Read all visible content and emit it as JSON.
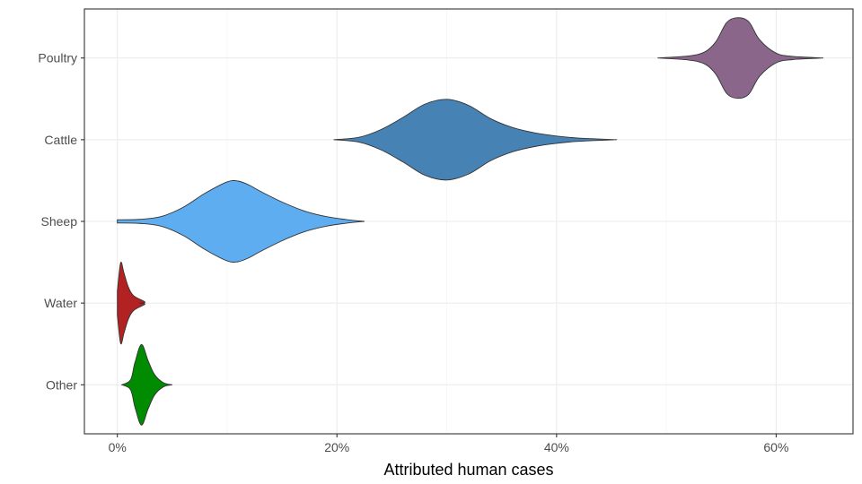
{
  "chart_data": {
    "type": "violin",
    "orientation": "horizontal",
    "title": "",
    "xlabel": "Attributed human cases",
    "ylabel": "",
    "xlim": [
      -3,
      67
    ],
    "x_ticks": [
      0,
      20,
      40,
      60
    ],
    "x_tick_labels": [
      "0%",
      "20%",
      "40%",
      "60%"
    ],
    "grid": true,
    "legend": "none",
    "categories": [
      "Poultry",
      "Cattle",
      "Sheep",
      "Water",
      "Other"
    ],
    "series": [
      {
        "category": "Poultry",
        "color": "#8b668b",
        "profile": [
          [
            49.2,
            0.0
          ],
          [
            52.0,
            0.05
          ],
          [
            53.5,
            0.15
          ],
          [
            54.5,
            0.4
          ],
          [
            55.5,
            0.88
          ],
          [
            56.5,
            1.0
          ],
          [
            57.5,
            0.9
          ],
          [
            58.5,
            0.45
          ],
          [
            60.0,
            0.12
          ],
          [
            61.5,
            0.04
          ],
          [
            64.3,
            0.0
          ]
        ]
      },
      {
        "category": "Cattle",
        "color": "#4682b4",
        "profile": [
          [
            19.7,
            0.0
          ],
          [
            22.0,
            0.06
          ],
          [
            24.0,
            0.25
          ],
          [
            26.0,
            0.55
          ],
          [
            28.0,
            0.88
          ],
          [
            30.0,
            1.0
          ],
          [
            32.0,
            0.85
          ],
          [
            34.0,
            0.52
          ],
          [
            36.0,
            0.3
          ],
          [
            38.0,
            0.17
          ],
          [
            40.0,
            0.09
          ],
          [
            42.0,
            0.04
          ],
          [
            45.5,
            0.0
          ]
        ]
      },
      {
        "category": "Sheep",
        "color": "#5eadf0",
        "profile": [
          [
            0.0,
            0.04
          ],
          [
            2.0,
            0.05
          ],
          [
            4.0,
            0.12
          ],
          [
            6.0,
            0.35
          ],
          [
            8.0,
            0.7
          ],
          [
            10.0,
            0.98
          ],
          [
            11.0,
            1.0
          ],
          [
            12.0,
            0.9
          ],
          [
            13.0,
            0.75
          ],
          [
            15.0,
            0.48
          ],
          [
            17.0,
            0.26
          ],
          [
            19.0,
            0.12
          ],
          [
            21.0,
            0.04
          ],
          [
            22.5,
            0.0
          ]
        ]
      },
      {
        "category": "Water",
        "color": "#b22222",
        "profile": [
          [
            0.0,
            0.3
          ],
          [
            0.3,
            1.0
          ],
          [
            0.6,
            0.75
          ],
          [
            1.0,
            0.4
          ],
          [
            1.5,
            0.18
          ],
          [
            2.5,
            0.03
          ],
          [
            2.1,
            0.0
          ]
        ]
      },
      {
        "category": "Other",
        "color": "#008b00",
        "profile": [
          [
            0.4,
            0.0
          ],
          [
            1.2,
            0.12
          ],
          [
            1.6,
            0.55
          ],
          [
            2.2,
            1.0
          ],
          [
            2.8,
            0.6
          ],
          [
            3.4,
            0.25
          ],
          [
            4.2,
            0.05
          ],
          [
            5.0,
            0.0
          ]
        ]
      }
    ]
  }
}
